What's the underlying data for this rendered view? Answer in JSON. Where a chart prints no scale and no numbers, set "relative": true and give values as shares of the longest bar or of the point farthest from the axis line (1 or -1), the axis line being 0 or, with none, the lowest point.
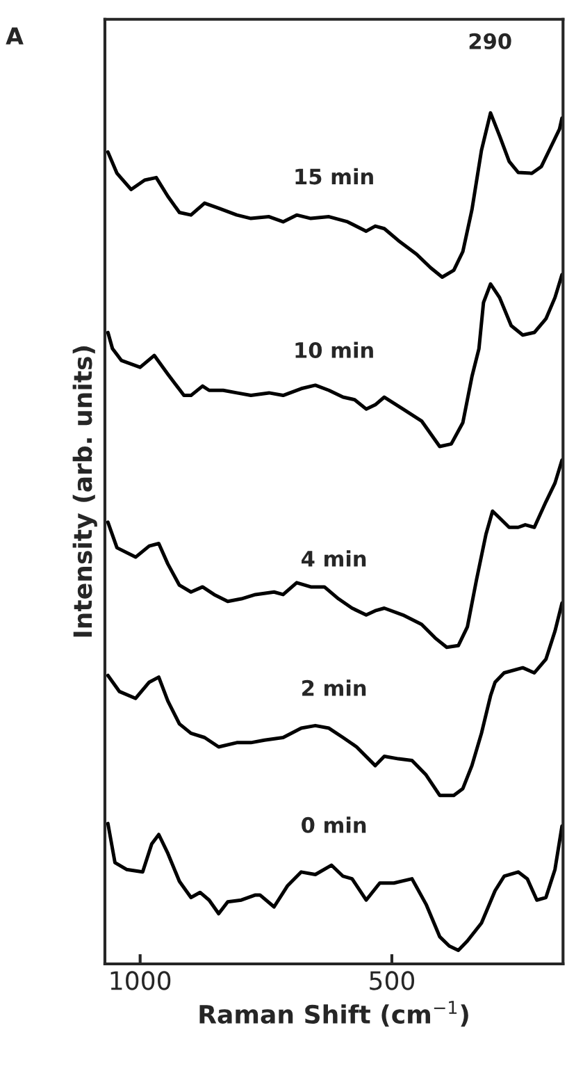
{
  "chart_data": {
    "type": "line",
    "relative": true,
    "xlabel": "Raman Shift (cm$^{−1}$)",
    "ylabel": "Intensity (arb. units)",
    "xlim": [
      1070,
      160
    ],
    "xticks": [
      1000,
      500
    ],
    "legend": false,
    "grid": false,
    "annotations": [
      "A",
      {
        "text": "290",
        "x": 305,
        "y": 1.0
      }
    ],
    "series": [
      {
        "name": "15 min",
        "color": "#000000",
        "x": [
          1064,
          1046,
          1018,
          991,
          968,
          945,
          922,
          899,
          872,
          844,
          808,
          780,
          744,
          716,
          689,
          661,
          625,
          588,
          551,
          533,
          515,
          487,
          451,
          423,
          400,
          377,
          359,
          341,
          322,
          304,
          286,
          267,
          249,
          222,
          203,
          185,
          167,
          162
        ],
        "values": [
          0.954,
          0.929,
          0.91,
          0.921,
          0.924,
          0.902,
          0.883,
          0.88,
          0.894,
          0.888,
          0.88,
          0.876,
          0.878,
          0.872,
          0.88,
          0.876,
          0.878,
          0.872,
          0.861,
          0.867,
          0.864,
          0.85,
          0.834,
          0.818,
          0.807,
          0.815,
          0.837,
          0.886,
          0.956,
          1.0,
          0.973,
          0.943,
          0.93,
          0.929,
          0.937,
          0.959,
          0.981,
          0.994
        ]
      },
      {
        "name": "10 min",
        "color": "#000000",
        "x": [
          1064,
          1055,
          1037,
          1000,
          972,
          945,
          913,
          899,
          876,
          863,
          835,
          808,
          780,
          744,
          716,
          680,
          652,
          625,
          597,
          574,
          551,
          533,
          515,
          478,
          441,
          405,
          382,
          359,
          341,
          327,
          318,
          304,
          286,
          263,
          240,
          217,
          194,
          176,
          162
        ],
        "values": [
          0.742,
          0.723,
          0.709,
          0.701,
          0.715,
          0.693,
          0.668,
          0.668,
          0.679,
          0.674,
          0.674,
          0.671,
          0.668,
          0.671,
          0.668,
          0.676,
          0.68,
          0.674,
          0.666,
          0.663,
          0.652,
          0.657,
          0.666,
          0.652,
          0.638,
          0.608,
          0.611,
          0.636,
          0.69,
          0.723,
          0.777,
          0.799,
          0.783,
          0.75,
          0.739,
          0.742,
          0.758,
          0.783,
          0.81
        ]
      },
      {
        "name": "4 min",
        "color": "#000000",
        "x": [
          1064,
          1046,
          1009,
          982,
          963,
          945,
          922,
          899,
          876,
          853,
          826,
          799,
          771,
          734,
          716,
          689,
          661,
          634,
          606,
          579,
          551,
          533,
          515,
          478,
          441,
          414,
          391,
          368,
          350,
          332,
          313,
          300,
          286,
          267,
          249,
          235,
          217,
          194,
          176,
          162
        ],
        "values": [
          0.519,
          0.489,
          0.478,
          0.491,
          0.494,
          0.47,
          0.445,
          0.437,
          0.443,
          0.434,
          0.426,
          0.429,
          0.434,
          0.437,
          0.434,
          0.448,
          0.443,
          0.443,
          0.429,
          0.418,
          0.41,
          0.415,
          0.418,
          0.41,
          0.399,
          0.383,
          0.372,
          0.374,
          0.396,
          0.451,
          0.505,
          0.532,
          0.524,
          0.513,
          0.513,
          0.516,
          0.513,
          0.543,
          0.565,
          0.592
        ]
      },
      {
        "name": "2 min",
        "color": "#000000",
        "x": [
          1064,
          1041,
          1009,
          982,
          963,
          945,
          922,
          899,
          872,
          844,
          808,
          780,
          753,
          716,
          680,
          652,
          625,
          597,
          570,
          533,
          515,
          487,
          460,
          432,
          405,
          377,
          359,
          341,
          322,
          304,
          295,
          277,
          240,
          217,
          194,
          176,
          162
        ],
        "values": [
          0.339,
          0.32,
          0.312,
          0.331,
          0.337,
          0.309,
          0.282,
          0.271,
          0.266,
          0.255,
          0.26,
          0.26,
          0.263,
          0.266,
          0.277,
          0.28,
          0.277,
          0.266,
          0.255,
          0.233,
          0.244,
          0.241,
          0.239,
          0.222,
          0.198,
          0.198,
          0.206,
          0.233,
          0.271,
          0.315,
          0.331,
          0.342,
          0.348,
          0.342,
          0.358,
          0.391,
          0.424
        ]
      },
      {
        "name": "0 min",
        "color": "#000000",
        "x": [
          1064,
          1050,
          1027,
          995,
          977,
          963,
          945,
          922,
          899,
          881,
          863,
          844,
          826,
          799,
          771,
          762,
          734,
          707,
          680,
          652,
          620,
          597,
          579,
          551,
          524,
          496,
          460,
          432,
          405,
          386,
          368,
          350,
          322,
          295,
          277,
          249,
          231,
          212,
          194,
          176,
          162
        ],
        "values": [
          0.165,
          0.119,
          0.111,
          0.108,
          0.141,
          0.152,
          0.13,
          0.097,
          0.078,
          0.084,
          0.075,
          0.059,
          0.073,
          0.075,
          0.081,
          0.081,
          0.067,
          0.092,
          0.108,
          0.105,
          0.116,
          0.103,
          0.1,
          0.075,
          0.095,
          0.095,
          0.1,
          0.07,
          0.032,
          0.021,
          0.016,
          0.027,
          0.048,
          0.086,
          0.103,
          0.108,
          0.1,
          0.075,
          0.078,
          0.111,
          0.162
        ]
      }
    ]
  }
}
